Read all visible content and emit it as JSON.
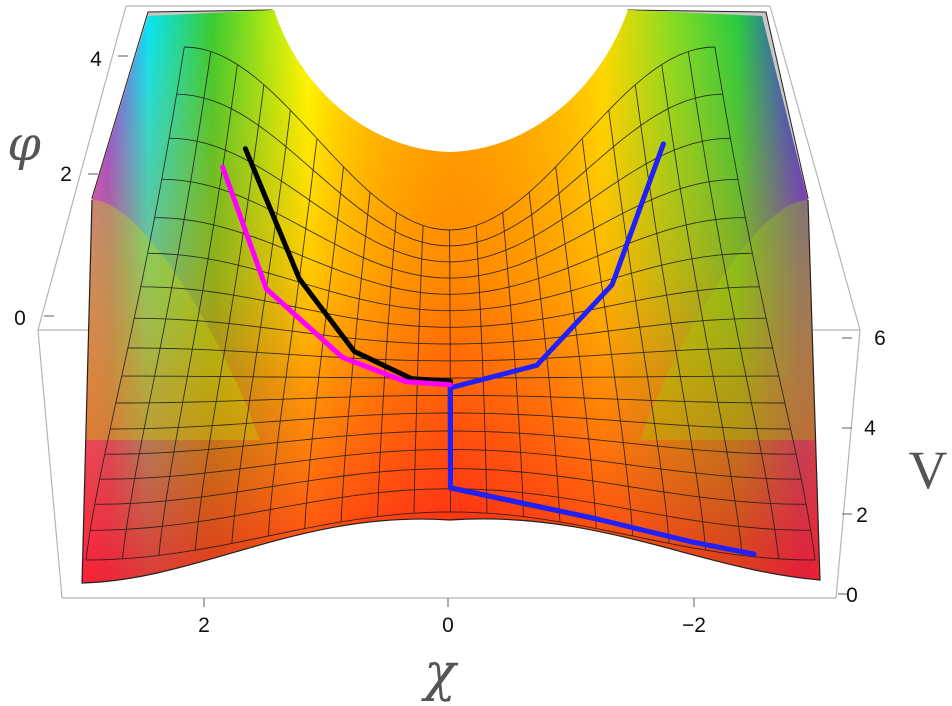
{
  "chart_data": {
    "type": "surface3d",
    "title": "",
    "axes": {
      "x": {
        "label": "χ",
        "ticks": [
          "2",
          "0",
          "−2"
        ],
        "range": [
          3,
          -3
        ]
      },
      "y": {
        "label": "φ",
        "ticks": [
          "0",
          "2",
          "4"
        ],
        "range": [
          0,
          4.6
        ]
      },
      "z": {
        "label": "V",
        "ticks": [
          "0",
          "2",
          "4",
          "6"
        ],
        "range": [
          0,
          6
        ]
      }
    },
    "colormap": "hue",
    "grid_mesh": true,
    "surface_cap_color": "#c8c8c8",
    "trajectories": [
      {
        "color": "#000000",
        "points": [
          [
            2.2,
            4.1
          ],
          [
            1.5,
            3.2
          ],
          [
            0.9,
            2.4
          ],
          [
            0.35,
            2.0
          ],
          [
            0.0,
            1.96
          ],
          [
            0.0,
            0.3
          ],
          [
            -0.6,
            0.15
          ],
          [
            -1.2,
            0.1
          ]
        ]
      },
      {
        "color": "#1f1fff",
        "points": [
          [
            -2.3,
            4.1
          ],
          [
            -1.6,
            3.1
          ],
          [
            -0.8,
            2.2
          ],
          [
            0.0,
            1.85
          ],
          [
            0.0,
            0.3
          ],
          [
            -0.6,
            0.15
          ],
          [
            -1.2,
            0.1
          ],
          [
            -2.0,
            0.05
          ],
          [
            -2.5,
            0.02
          ]
        ]
      },
      {
        "color": "#ff00ff",
        "points": [
          [
            2.4,
            3.9
          ],
          [
            1.8,
            3.0
          ],
          [
            1.0,
            2.3
          ],
          [
            0.4,
            1.95
          ],
          [
            0.0,
            1.9
          ]
        ]
      }
    ]
  }
}
